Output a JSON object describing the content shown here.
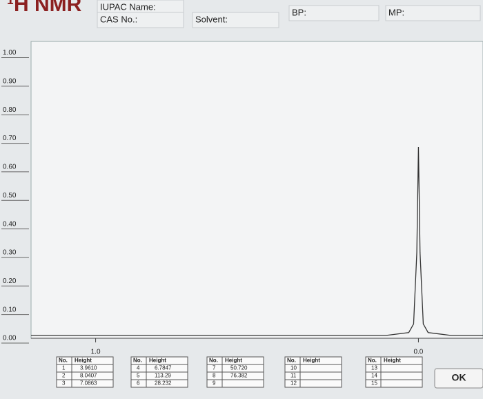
{
  "header": {
    "title": "¹H NMR",
    "fields": [
      "IUPAC Name:",
      "CAS No.:",
      "Solvent:",
      "BP:",
      "MP:"
    ]
  },
  "chart_data": {
    "type": "line",
    "x": [
      1.2,
      0.1,
      0.03,
      0.015,
      0.005,
      0.0,
      -0.005,
      -0.015,
      -0.03,
      -0.1,
      -0.2
    ],
    "series": [
      {
        "color": "#333333",
        "values": [
          0.01,
          0.01,
          0.02,
          0.05,
          0.3,
          0.67,
          0.3,
          0.05,
          0.02,
          0.01,
          0.01
        ]
      }
    ],
    "xlim": [
      1.2,
      -0.2
    ],
    "xticks": [
      {
        "value": 1,
        "label": "1.0"
      },
      {
        "value": 0,
        "label": "0.0"
      }
    ],
    "ylim": [
      0,
      1.04
    ],
    "yticks": [
      {
        "value": 0,
        "label": "0.00"
      },
      {
        "value": 0.1,
        "label": "0.10"
      },
      {
        "value": 0.2,
        "label": "0.20"
      },
      {
        "value": 0.3,
        "label": "0.30"
      },
      {
        "value": 0.4,
        "label": "0.40"
      },
      {
        "value": 0.5,
        "label": "0.50"
      },
      {
        "value": 0.6,
        "label": "0.60"
      },
      {
        "value": 0.7,
        "label": "0.70"
      },
      {
        "value": 0.8,
        "label": "0.80"
      },
      {
        "value": 0.9,
        "label": "0.90"
      },
      {
        "value": 1,
        "label": "1.00"
      }
    ]
  },
  "peak_tables": [
    {
      "headers": [
        "No.",
        "Height"
      ],
      "rows": [
        {
          "no": "1",
          "height": "3.9610"
        },
        {
          "no": "2",
          "height": "8.0407"
        },
        {
          "no": "3",
          "height": "7.0863"
        }
      ]
    },
    {
      "headers": [
        "No.",
        "Height"
      ],
      "rows": [
        {
          "no": "4",
          "height": "6.7847"
        },
        {
          "no": "5",
          "height": "113.29"
        },
        {
          "no": "6",
          "height": "28.232"
        }
      ]
    },
    {
      "headers": [
        "No.",
        "Height"
      ],
      "rows": [
        {
          "no": "7",
          "height": "50.720"
        },
        {
          "no": "8",
          "height": "76.382"
        },
        {
          "no": "9"
        }
      ]
    },
    {
      "headers": [
        "No.",
        "Height"
      ],
      "rows": [
        {
          "no": "10"
        },
        {
          "no": "11"
        },
        {
          "no": "12"
        }
      ]
    },
    {
      "headers": [
        "No.",
        "Height"
      ],
      "rows": [
        {
          "no": "13"
        },
        {
          "no": "14"
        },
        {
          "no": "15"
        }
      ]
    }
  ],
  "button": "OK"
}
